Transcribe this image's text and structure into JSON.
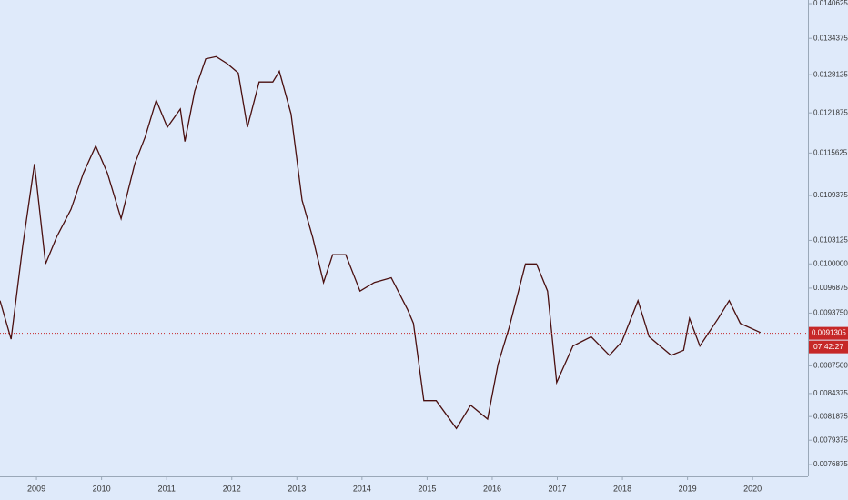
{
  "chart_data": {
    "type": "line",
    "log_scale": true,
    "x": [
      2008.44,
      2008.61,
      2008.79,
      2008.97,
      2009.14,
      2009.31,
      2009.53,
      2009.72,
      2009.91,
      2010.09,
      2010.3,
      2010.51,
      2010.67,
      2010.84,
      2011.01,
      2011.21,
      2011.28,
      2011.43,
      2011.6,
      2011.76,
      2011.93,
      2012.1,
      2012.24,
      2012.42,
      2012.63,
      2012.73,
      2012.91,
      2013.08,
      2013.24,
      2013.41,
      2013.55,
      2013.75,
      2013.97,
      2014.19,
      2014.45,
      2014.7,
      2014.79,
      2014.95,
      2015.14,
      2015.45,
      2015.67,
      2015.93,
      2016.09,
      2016.26,
      2016.51,
      2016.68,
      2016.85,
      2016.99,
      2017.24,
      2017.52,
      2017.8,
      2017.99,
      2018.24,
      2018.41,
      2018.75,
      2018.94,
      2019.03,
      2019.19,
      2019.47,
      2019.64,
      2019.81,
      2020.12
    ],
    "series": [
      {
        "color": "#4a0f0f",
        "values": [
          0.00953,
          0.00906,
          0.01024,
          0.0114,
          0.01,
          0.01036,
          0.01074,
          0.01126,
          0.01167,
          0.01126,
          0.01061,
          0.0114,
          0.01181,
          0.01239,
          0.01196,
          0.01225,
          0.01174,
          0.01254,
          0.01308,
          0.01312,
          0.013,
          0.01284,
          0.01196,
          0.01269,
          0.01269,
          0.01287,
          0.01217,
          0.01087,
          0.01036,
          0.00976,
          0.01012,
          0.01012,
          0.00965,
          0.00976,
          0.00982,
          0.00942,
          0.00925,
          0.00836,
          0.00836,
          0.00806,
          0.00831,
          0.00816,
          0.00877,
          0.0092,
          0.01,
          0.01,
          0.00965,
          0.00856,
          0.00898,
          0.00909,
          0.00887,
          0.00903,
          0.00953,
          0.00909,
          0.00887,
          0.00893,
          0.00931,
          0.00898,
          0.00931,
          0.00953,
          0.00925,
          0.00914
        ]
      }
    ],
    "xlim": [
      2008.44,
      2020.85
    ],
    "xticks": [
      2009,
      2010,
      2011,
      2012,
      2013,
      2014,
      2015,
      2016,
      2017,
      2018,
      2019,
      2020
    ],
    "ylim": [
      0.00757,
      0.01413
    ],
    "yticks": [
      0.0140625,
      0.0134375,
      0.0128125,
      0.0121875,
      0.0115625,
      0.0109375,
      0.0103125,
      {
        "value": 0.01,
        "label": "0.0100000"
      },
      0.0096875,
      {
        "value": 0.009375,
        "label": "0.0093750"
      },
      {
        "value": 0.00875,
        "label": "0.0087500"
      },
      0.0084375,
      0.0081875,
      0.0079375,
      0.0076875
    ],
    "last_price": 0.0091305,
    "last_price_color": "#c62828",
    "countdown": "07:42:27"
  }
}
